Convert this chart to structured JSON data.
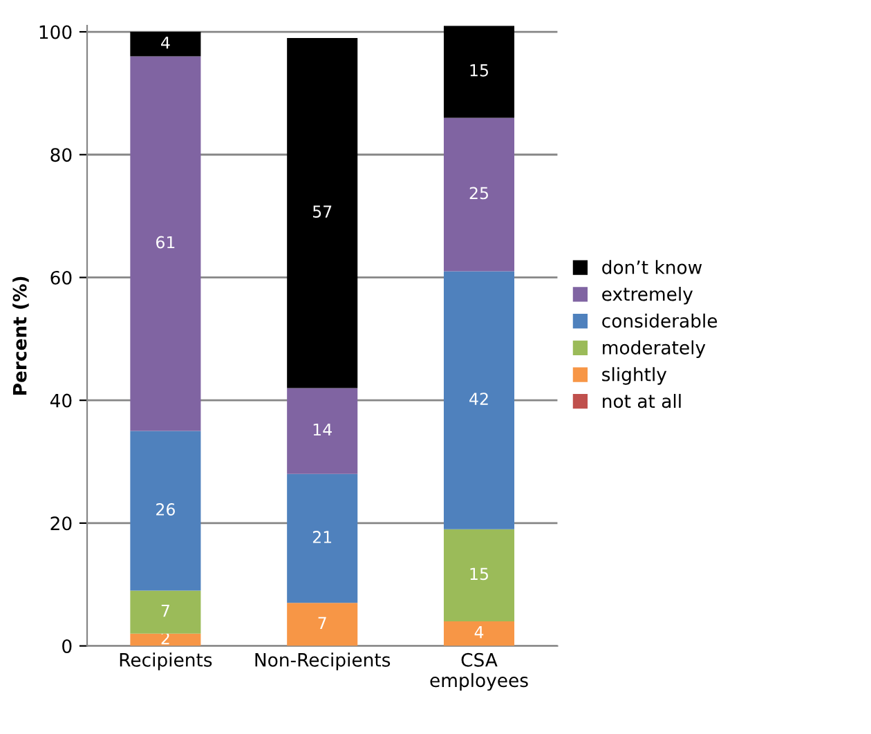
{
  "chart_data": {
    "type": "bar",
    "stacked": true,
    "ylabel": "Percent (%)",
    "categories": [
      "Recipients",
      "Non-Recipients",
      "CSA employees"
    ],
    "ylim": [
      0,
      101
    ],
    "yticks": [
      0,
      20,
      40,
      60,
      80,
      100
    ],
    "grid": "y",
    "legend": "right",
    "series": [
      {
        "name": "not at all",
        "color": "#c0504d",
        "values": [
          0,
          0,
          0
        ],
        "value_labels": [
          null,
          null,
          null
        ]
      },
      {
        "name": "slightly",
        "color": "#f79646",
        "values": [
          2,
          7,
          4
        ],
        "value_labels": [
          "2",
          "7",
          "4"
        ]
      },
      {
        "name": "moderately",
        "color": "#9bbb59",
        "values": [
          7,
          0,
          15
        ],
        "value_labels": [
          "7",
          null,
          "15"
        ]
      },
      {
        "name": "considerable",
        "color": "#4f81bd",
        "values": [
          26,
          21,
          42
        ],
        "value_labels": [
          "26",
          "21",
          "42"
        ]
      },
      {
        "name": "extremely",
        "color": "#8064a2",
        "values": [
          61,
          14,
          25
        ],
        "value_labels": [
          "61",
          "14",
          "25"
        ]
      },
      {
        "name": "don’t know",
        "color": "#000000",
        "values": [
          4,
          57,
          15
        ],
        "value_labels": [
          "4",
          "57",
          "15"
        ]
      }
    ]
  }
}
